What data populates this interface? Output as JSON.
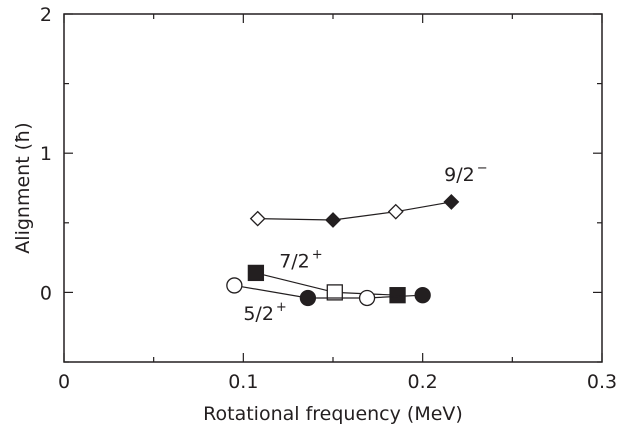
{
  "chart_data": {
    "type": "scatter",
    "xlabel": "Rotational frequency (MeV)",
    "ylabel": "Alignment (ħ)",
    "xlim": [
      0,
      0.3
    ],
    "ylim": [
      -0.5,
      2
    ],
    "xticks": [
      "0",
      "0.1",
      "0.2",
      "0.3"
    ],
    "xtick_values": [
      0,
      0.1,
      0.2,
      0.3
    ],
    "yticks": [
      "0",
      "1",
      "2"
    ],
    "ytick_values": [
      0,
      1,
      2
    ],
    "grid": false,
    "series": [
      {
        "marker": "diamond",
        "color": "#231f20",
        "connected": true,
        "points": [
          {
            "x": 0.108,
            "y": 0.53,
            "filled": false
          },
          {
            "x": 0.15,
            "y": 0.52,
            "filled": true
          },
          {
            "x": 0.185,
            "y": 0.58,
            "filled": false
          },
          {
            "x": 0.216,
            "y": 0.65,
            "filled": true
          }
        ]
      },
      {
        "marker": "square",
        "color": "#231f20",
        "connected": true,
        "points": [
          {
            "x": 0.107,
            "y": 0.14,
            "filled": true
          },
          {
            "x": 0.151,
            "y": 0.0,
            "filled": false
          },
          {
            "x": 0.186,
            "y": -0.02,
            "filled": true
          }
        ]
      },
      {
        "marker": "circle",
        "color": "#231f20",
        "connected": true,
        "points": [
          {
            "x": 0.095,
            "y": 0.05,
            "filled": false
          },
          {
            "x": 0.136,
            "y": -0.04,
            "filled": true
          },
          {
            "x": 0.169,
            "y": -0.04,
            "filled": false
          },
          {
            "x": 0.2,
            "y": -0.02,
            "filled": true
          }
        ]
      }
    ],
    "annotations": [
      {
        "base": "9/2",
        "sup": "−",
        "x": 0.212,
        "y": 0.8
      },
      {
        "base": "7/2",
        "sup": "+",
        "x": 0.12,
        "y": 0.18
      },
      {
        "base": "5/2",
        "sup": "+",
        "x": 0.1,
        "y": -0.2
      }
    ]
  }
}
